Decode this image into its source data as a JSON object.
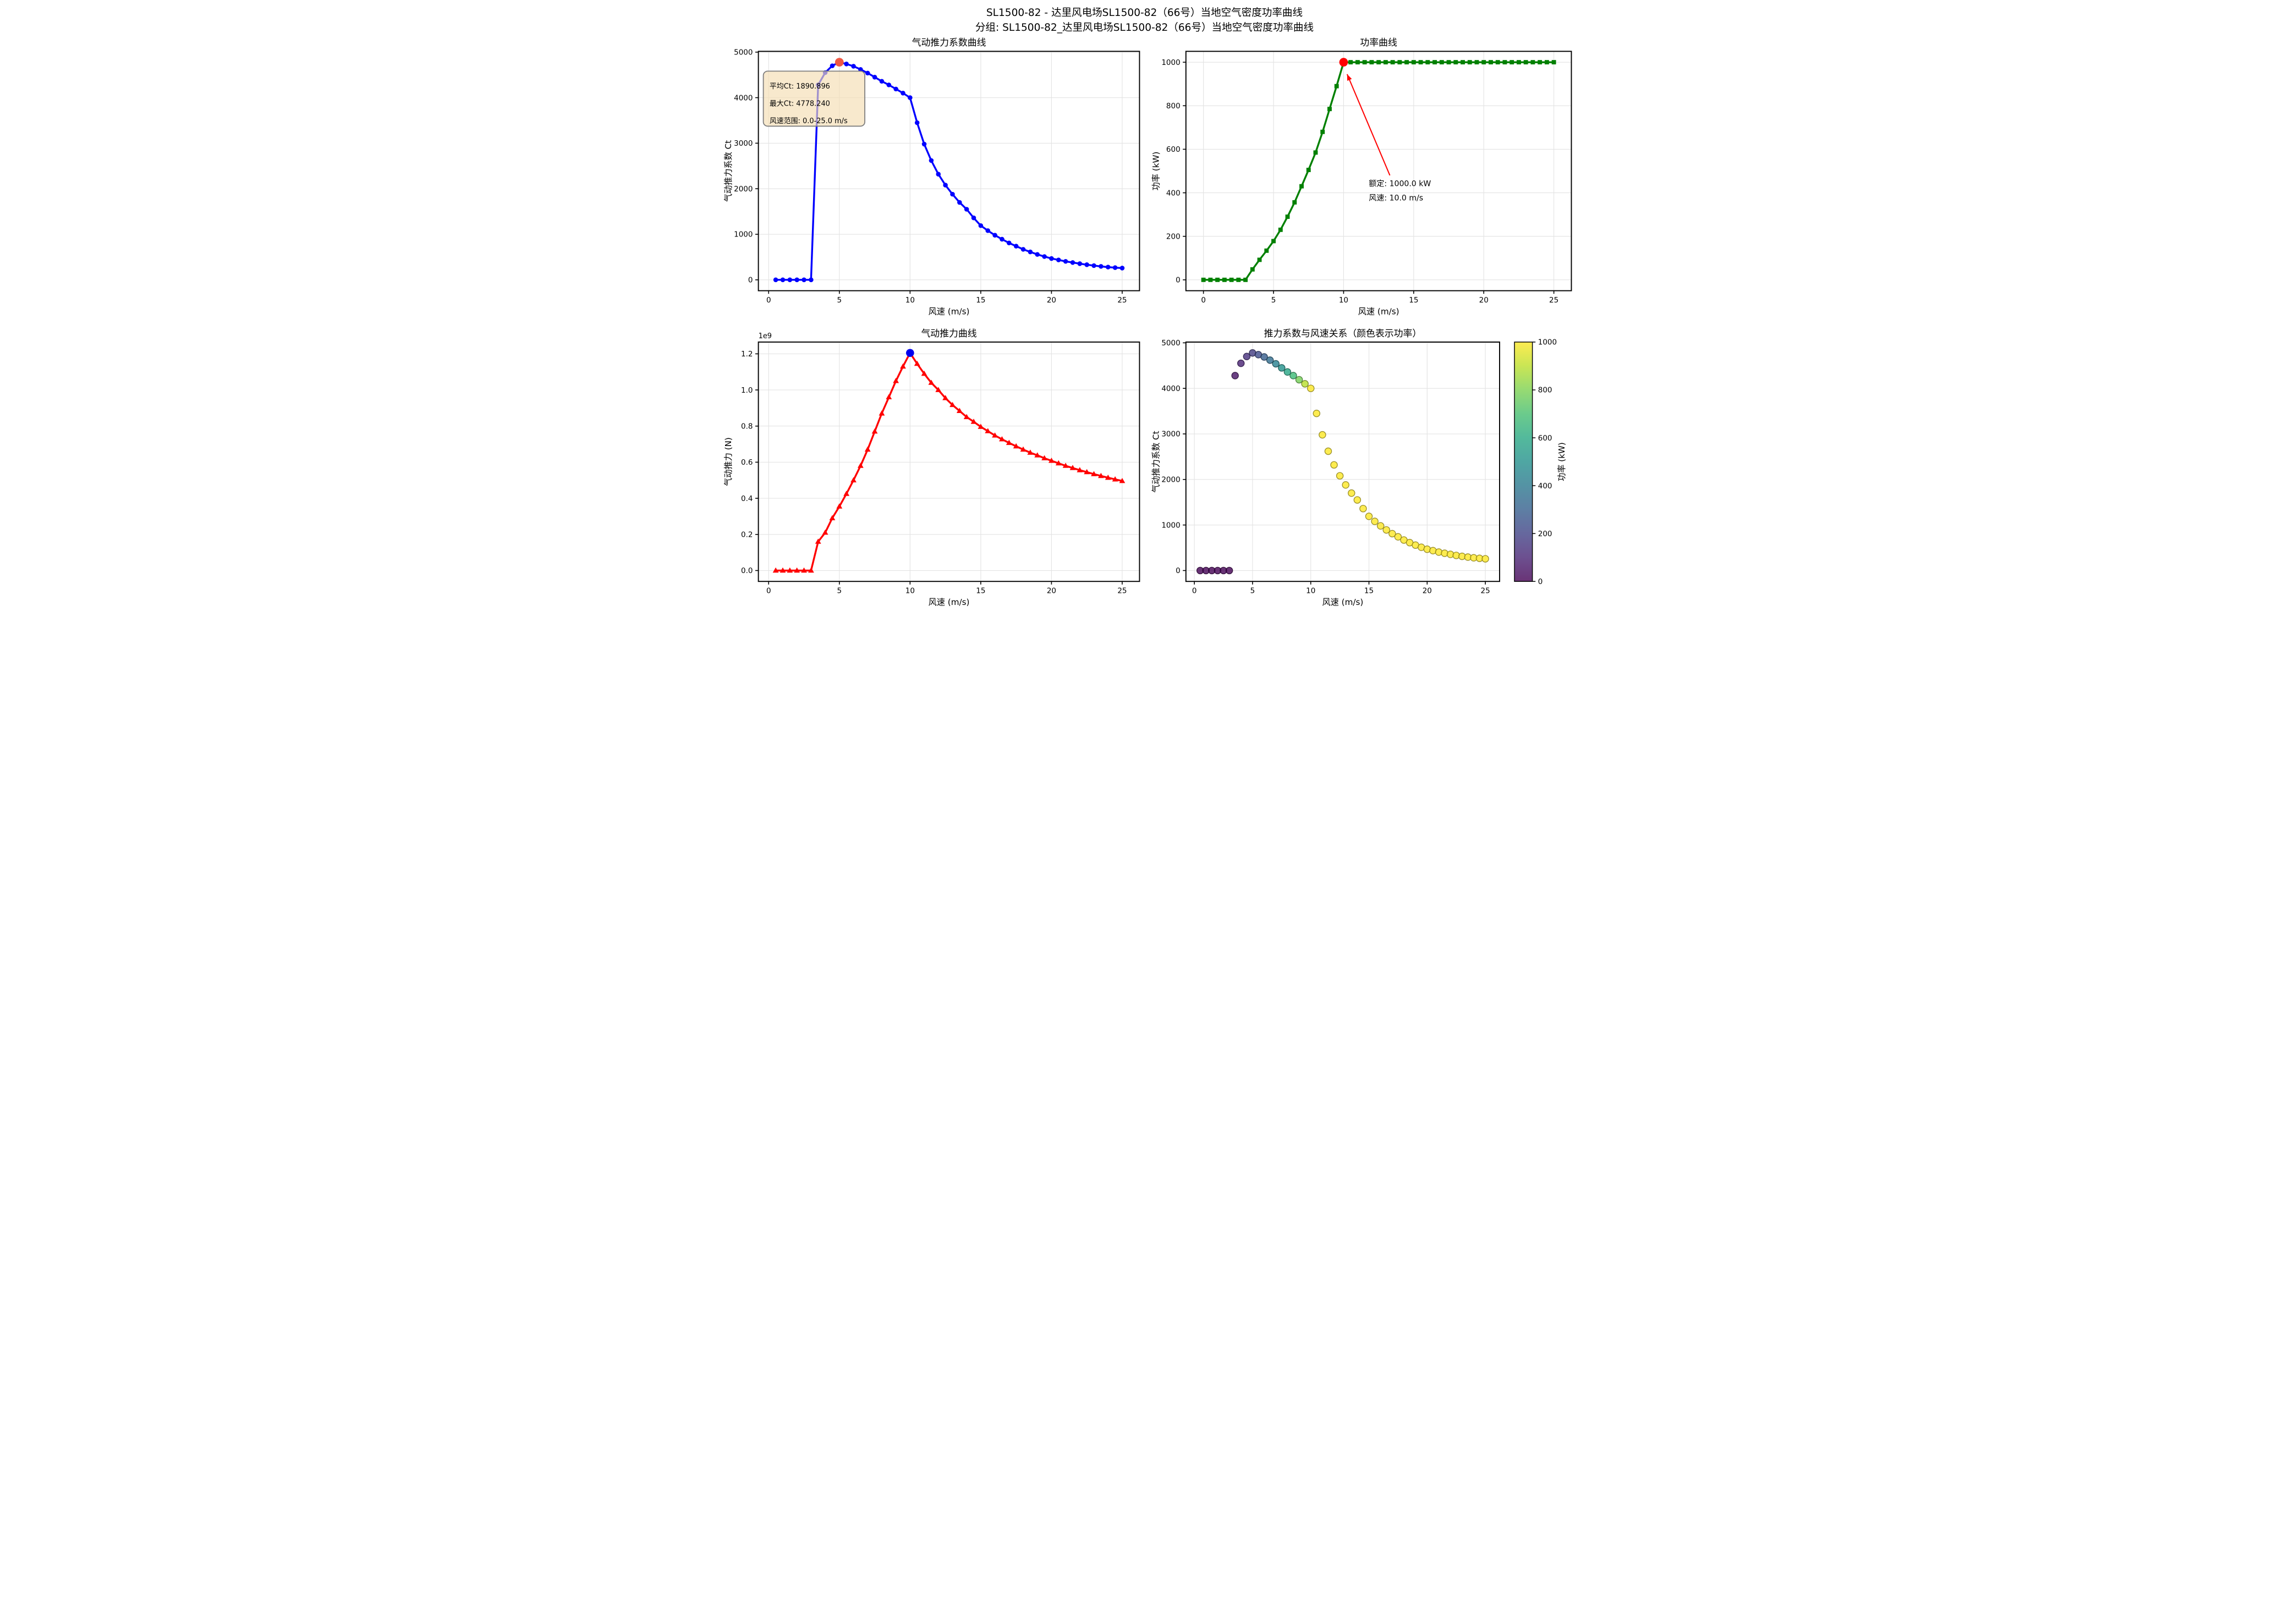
{
  "figure": {
    "title": "SL1500-82 - 达里风电场SL1500-82（66号）当地空气密度功率曲线",
    "subtitle": "分组: SL1500-82_达里风电场SL1500-82（66号）当地空气密度功率曲线"
  },
  "colors": {
    "ct_line": "#0000ff",
    "power_line": "#008000",
    "thrust_line": "#ff0000",
    "rated_dot": "#ff0000",
    "ct_peak_dot": "#ef5844",
    "thrust_peak_dot": "#0000ee",
    "annotation_red": "#ff0000",
    "tooltip_bg": "#f5deb3",
    "tooltip_border": "#7f7f7f",
    "grid": "#e3e3e3",
    "spine": "#000000"
  },
  "chart_data": [
    {
      "id": "ct-coefficient-curve",
      "type": "line",
      "title": "气动推力系数曲线",
      "xlabel": "风速 (m/s)",
      "ylabel": "气动推力系数 Ct",
      "marker": "circle",
      "line_color": "#0000ff",
      "xlim": [
        -0.725,
        26.225
      ],
      "ylim": [
        -239,
        5017
      ],
      "xticks": [
        0,
        5,
        10,
        15,
        20,
        25
      ],
      "yticks": [
        0,
        1000,
        2000,
        3000,
        4000,
        5000
      ],
      "ydec": 0,
      "grid": true,
      "x": [
        0.5,
        1,
        1.5,
        2,
        2.5,
        3,
        3.5,
        4,
        4.5,
        5,
        5.5,
        6,
        6.5,
        7,
        7.5,
        8,
        8.5,
        9,
        9.5,
        10,
        10.5,
        11,
        11.5,
        12,
        12.5,
        13,
        13.5,
        14,
        14.5,
        15,
        15.5,
        16,
        16.5,
        17,
        17.5,
        18,
        18.5,
        19,
        19.5,
        20,
        20.5,
        21,
        21.5,
        22,
        22.5,
        23,
        23.5,
        24,
        24.5,
        25
      ],
      "y": [
        0,
        0,
        0,
        0,
        0,
        0,
        4280,
        4550,
        4700,
        4778.24,
        4740,
        4690,
        4620,
        4540,
        4450,
        4360,
        4280,
        4190,
        4100,
        4000,
        3450,
        2980,
        2620,
        2320,
        2080,
        1880,
        1700,
        1550,
        1360,
        1190,
        1080,
        980,
        892,
        810,
        740,
        670,
        613,
        558,
        511,
        468,
        437,
        405,
        380,
        355,
        332,
        312,
        295,
        280,
        268,
        258
      ],
      "highlight": {
        "x": 5.0,
        "y": 4778.24,
        "color": "#ef5844",
        "r": 7
      },
      "tooltip": {
        "lines": [
          "平均Ct: 1890.896",
          "最大Ct: 4778.240",
          "风速范围: 0.0-25.0 m/s"
        ],
        "bg": "#f5deb3",
        "border": "#7f7f7f"
      }
    },
    {
      "id": "power-curve",
      "type": "line",
      "title": "功率曲线",
      "xlabel": "风速 (m/s)",
      "ylabel": "功率 (kW)",
      "marker": "square",
      "line_color": "#008000",
      "xlim": [
        -1.25,
        26.25
      ],
      "ylim": [
        -50,
        1050
      ],
      "xticks": [
        0,
        5,
        10,
        15,
        20,
        25
      ],
      "yticks": [
        0,
        200,
        400,
        600,
        800,
        1000
      ],
      "ydec": 0,
      "grid": true,
      "x": [
        0,
        0.5,
        1,
        1.5,
        2,
        2.5,
        3,
        3.5,
        4,
        4.5,
        5,
        5.5,
        6,
        6.5,
        7,
        7.5,
        8,
        8.5,
        9,
        9.5,
        10,
        10.5,
        11,
        11.5,
        12,
        12.5,
        13,
        13.5,
        14,
        14.5,
        15,
        15.5,
        16,
        16.5,
        17,
        17.5,
        18,
        18.5,
        19,
        19.5,
        20,
        20.5,
        21,
        21.5,
        22,
        22.5,
        23,
        23.5,
        24,
        24.5,
        25
      ],
      "y": [
        0,
        0,
        0,
        0,
        0,
        0,
        0,
        48,
        92,
        134,
        178,
        230,
        290,
        356,
        430,
        505,
        585,
        680,
        785,
        890,
        1000,
        1000,
        1000,
        1000,
        1000,
        1000,
        1000,
        1000,
        1000,
        1000,
        1000,
        1000,
        1000,
        1000,
        1000,
        1000,
        1000,
        1000,
        1000,
        1000,
        1000,
        1000,
        1000,
        1000,
        1000,
        1000,
        1000,
        1000,
        1000,
        1000,
        1000
      ],
      "highlight": {
        "x": 10.0,
        "y": 1000,
        "color": "#ff0000",
        "r": 7
      },
      "annotation": {
        "lines": [
          "额定: 1000.0 kW",
          "风速: 10.0 m/s"
        ],
        "color": "#ff0000",
        "text_xy": [
          11.8,
          430
        ],
        "arrow_from": [
          13.3,
          480
        ],
        "arrow_to": [
          10.25,
          945
        ]
      }
    },
    {
      "id": "thrust-curve",
      "type": "line",
      "title": "气动推力曲线",
      "xlabel": "风速 (m/s)",
      "ylabel": "气动推力 (N)",
      "marker": "triangle",
      "line_color": "#ff0000",
      "offset_label": "1e9",
      "xlim": [
        -0.725,
        26.225
      ],
      "ylim": [
        -0.0603,
        1.2653
      ],
      "xticks": [
        0,
        5,
        10,
        15,
        20,
        25
      ],
      "yticks": [
        0.0,
        0.2,
        0.4,
        0.6,
        0.8,
        1.0,
        1.2
      ],
      "ydec": 1,
      "grid": true,
      "x": [
        0.5,
        1,
        1.5,
        2,
        2.5,
        3,
        3.5,
        4,
        4.5,
        5,
        5.5,
        6,
        6.5,
        7,
        7.5,
        8,
        8.5,
        9,
        9.5,
        10,
        10.5,
        11,
        11.5,
        12,
        12.5,
        13,
        13.5,
        14,
        14.5,
        15,
        15.5,
        16,
        16.5,
        17,
        17.5,
        18,
        18.5,
        19,
        19.5,
        20,
        20.5,
        21,
        21.5,
        22,
        22.5,
        23,
        23.5,
        24,
        24.5,
        25
      ],
      "y": [
        0,
        0,
        0,
        0,
        0,
        0,
        0.16,
        0.21,
        0.29,
        0.355,
        0.425,
        0.5,
        0.58,
        0.67,
        0.77,
        0.87,
        0.96,
        1.05,
        1.13,
        1.205,
        1.145,
        1.09,
        1.04,
        1.0,
        0.955,
        0.917,
        0.884,
        0.85,
        0.824,
        0.796,
        0.772,
        0.748,
        0.727,
        0.707,
        0.688,
        0.67,
        0.653,
        0.638,
        0.622,
        0.608,
        0.594,
        0.58,
        0.568,
        0.556,
        0.545,
        0.534,
        0.524,
        0.514,
        0.505,
        0.496
      ],
      "highlight": {
        "x": 10.0,
        "y": 1.205,
        "color": "#0000ee",
        "r": 6.5
      }
    },
    {
      "id": "ct-vs-windspeed-scatter",
      "type": "scatter",
      "title": "推力系数与风速关系（颜色表示功率）",
      "xlabel": "风速 (m/s)",
      "ylabel": "气动推力系数 Ct",
      "xlim": [
        -0.725,
        26.225
      ],
      "ylim": [
        -239,
        5017
      ],
      "xticks": [
        0,
        5,
        10,
        15,
        20,
        25
      ],
      "yticks": [
        0,
        1000,
        2000,
        3000,
        4000,
        5000
      ],
      "ydec": 0,
      "grid": true,
      "x": [
        0.5,
        1,
        1.5,
        2,
        2.5,
        3,
        3.5,
        4,
        4.5,
        5,
        5.5,
        6,
        6.5,
        7,
        7.5,
        8,
        8.5,
        9,
        9.5,
        10,
        10.5,
        11,
        11.5,
        12,
        12.5,
        13,
        13.5,
        14,
        14.5,
        15,
        15.5,
        16,
        16.5,
        17,
        17.5,
        18,
        18.5,
        19,
        19.5,
        20,
        20.5,
        21,
        21.5,
        22,
        22.5,
        23,
        23.5,
        24,
        24.5,
        25
      ],
      "y": [
        0,
        0,
        0,
        0,
        0,
        0,
        4280,
        4550,
        4700,
        4778.24,
        4740,
        4690,
        4620,
        4540,
        4450,
        4360,
        4280,
        4190,
        4100,
        4000,
        3450,
        2980,
        2620,
        2320,
        2080,
        1880,
        1700,
        1550,
        1360,
        1190,
        1080,
        980,
        892,
        810,
        740,
        670,
        613,
        558,
        511,
        468,
        437,
        405,
        380,
        355,
        332,
        312,
        295,
        280,
        268,
        258
      ],
      "c": [
        0,
        0,
        0,
        0,
        0,
        0,
        48,
        92,
        134,
        178,
        230,
        290,
        356,
        430,
        505,
        585,
        680,
        785,
        890,
        1000,
        1000,
        1000,
        1000,
        1000,
        1000,
        1000,
        1000,
        1000,
        1000,
        1000,
        1000,
        1000,
        1000,
        1000,
        1000,
        1000,
        1000,
        1000,
        1000,
        1000,
        1000,
        1000,
        1000,
        1000,
        1000,
        1000,
        1000,
        1000,
        1000,
        1000
      ],
      "colorbar": {
        "label": "功率 (kW)",
        "vmin": 0,
        "vmax": 1000,
        "ticks": [
          0,
          200,
          400,
          600,
          800,
          1000
        ]
      }
    }
  ]
}
